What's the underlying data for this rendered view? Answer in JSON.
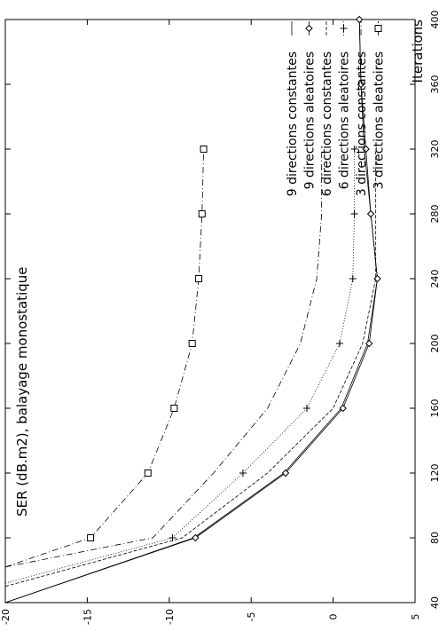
{
  "chart_data": {
    "type": "line",
    "orientation": "rotated-90-ccw",
    "title": "SER (dB.m2), balayage monostatique",
    "xlabel": "Iterations",
    "ylabel": "",
    "xlim": [
      40,
      400
    ],
    "ylim": [
      -20,
      5
    ],
    "x_ticks": [
      "40",
      "80",
      "120",
      "160",
      "200",
      "240",
      "280",
      "320",
      "360",
      "400"
    ],
    "y_ticks": [
      "-20",
      "-15",
      "-10",
      "-5",
      "0",
      "5"
    ],
    "grid": false,
    "legend_position": "bottom-right",
    "series": [
      {
        "name": "9 directions constantes",
        "style": "solid",
        "marker": "none",
        "x": [
          40,
          80,
          120,
          160,
          200,
          240,
          280,
          320,
          360,
          400
        ],
        "y": [
          -20,
          -8.5,
          -3,
          0.5,
          2.1,
          2.7,
          2.3,
          1.9,
          1.7,
          1.6
        ]
      },
      {
        "name": "9 directions aleatoires",
        "style": "solid",
        "marker": "diamond",
        "x": [
          40,
          80,
          120,
          160,
          200,
          240,
          280,
          320,
          360,
          400
        ],
        "y": [
          -20,
          -8.4,
          -2.9,
          0.6,
          2.2,
          2.7,
          2.3,
          2.0,
          1.7,
          1.6
        ]
      },
      {
        "name": "6 directions constantes",
        "style": "dashed",
        "marker": "none",
        "x": [
          50,
          80,
          120,
          160,
          200,
          240,
          280,
          320
        ],
        "y": [
          -20,
          -9.2,
          -4.0,
          0.0,
          1.8,
          2.6,
          2.6,
          2.6
        ]
      },
      {
        "name": "6 directions aleatoires",
        "style": "dotted",
        "marker": "plus",
        "x": [
          52,
          80,
          120,
          160,
          200,
          240,
          280,
          320
        ],
        "y": [
          -20,
          -9.8,
          -5.5,
          -1.6,
          0.4,
          1.2,
          1.3,
          1.3
        ]
      },
      {
        "name": "3 directions constantes",
        "style": "dash-dot",
        "marker": "none",
        "x": [
          62,
          80,
          120,
          160,
          200,
          240,
          280,
          320
        ],
        "y": [
          -20,
          -11.0,
          -7.3,
          -4.0,
          -2.0,
          -1.0,
          -0.7,
          -0.7
        ]
      },
      {
        "name": "3 directions aleatoires",
        "style": "dash-dot",
        "marker": "square",
        "x": [
          62,
          80,
          120,
          160,
          200,
          240,
          280,
          320
        ],
        "y": [
          -20,
          -14.8,
          -11.3,
          -9.7,
          -8.6,
          -8.2,
          -8.0,
          -7.9
        ]
      }
    ]
  }
}
